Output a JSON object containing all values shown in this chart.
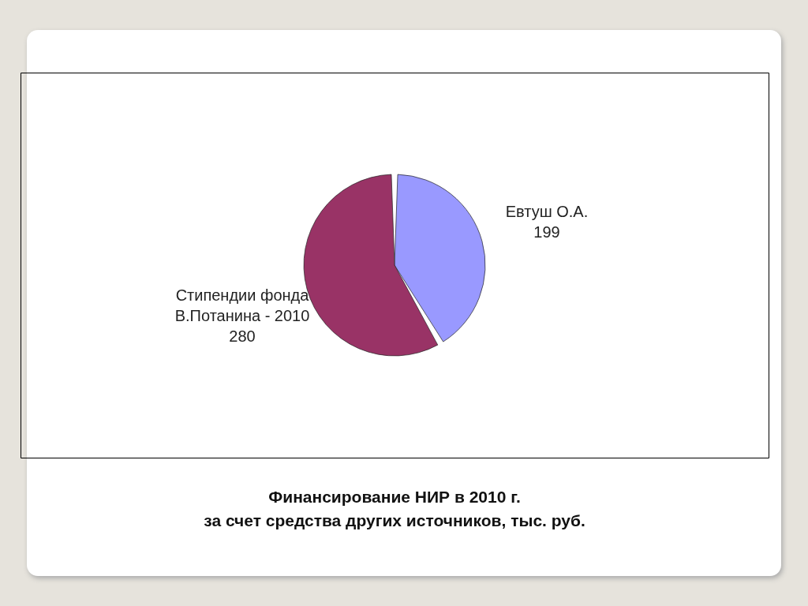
{
  "chart_data": {
    "type": "pie",
    "title": [
      "Финансирование НИР в 2010 г.",
      "за счет средства других источников, тыс. руб."
    ],
    "categories": [
      "Евтуш О.А.",
      "Стипендии фонда В.Потанина - 2010"
    ],
    "values": [
      199,
      280
    ],
    "colors": [
      "#9999ff",
      "#993366"
    ],
    "data_labels": true,
    "legend": false
  }
}
